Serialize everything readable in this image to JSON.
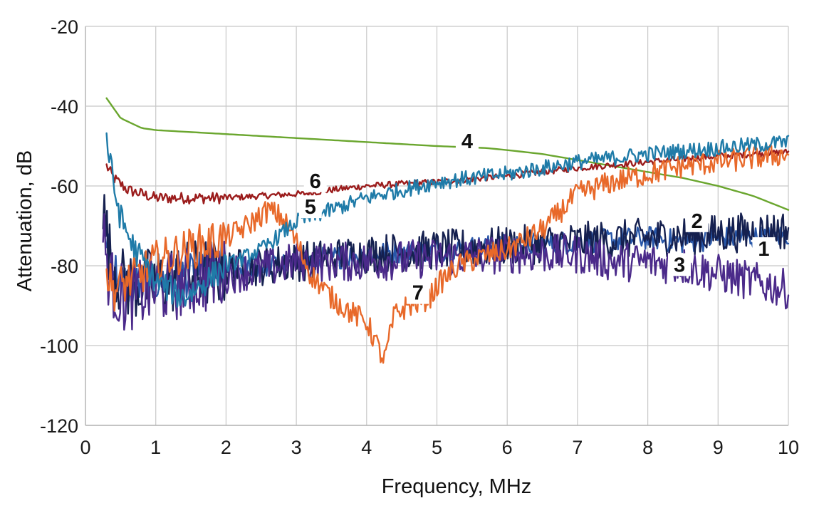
{
  "chart_data": {
    "type": "line",
    "title": "",
    "xlabel": "Frequency, MHz",
    "ylabel": "Attenuation, dB",
    "xlim": [
      0,
      10
    ],
    "ylim": [
      -120,
      -20
    ],
    "x_ticks": [
      0,
      1,
      2,
      3,
      4,
      5,
      6,
      7,
      8,
      9,
      10
    ],
    "y_ticks": [
      -20,
      -40,
      -60,
      -80,
      -100,
      -120
    ],
    "x_tick_labels": [
      "0",
      "1",
      "2",
      "3",
      "4",
      "5",
      "6",
      "7",
      "8",
      "9",
      "10"
    ],
    "y_tick_labels": [
      "-20",
      "-40",
      "-60",
      "-80",
      "-100",
      "-120"
    ],
    "grid": true,
    "legend": "none",
    "series": [
      {
        "name": "1",
        "color": "#2756a8",
        "noise": 3,
        "x": [
          0.3,
          0.4,
          0.5,
          0.7,
          1.0,
          1.3,
          1.6,
          2.0,
          2.5,
          3.0,
          3.5,
          4.0,
          5.0,
          6.0,
          7.0,
          8.0,
          8.5,
          9.0,
          9.5,
          9.8,
          10.0
        ],
        "y": [
          -72,
          -80,
          -84,
          -85,
          -84,
          -83,
          -82,
          -81,
          -80,
          -79,
          -78,
          -77,
          -76,
          -75,
          -74,
          -73,
          -74,
          -73,
          -73,
          -73,
          -72
        ]
      },
      {
        "name": "2",
        "color": "#15204f",
        "noise": 5,
        "x": [
          0.25,
          0.35,
          0.5,
          0.7,
          1.0,
          1.3,
          1.6,
          2.0,
          2.5,
          3.0,
          3.5,
          4.0,
          5.0,
          6.0,
          7.0,
          8.0,
          9.0,
          10.0
        ],
        "y": [
          -66,
          -78,
          -84,
          -85,
          -84,
          -83,
          -82,
          -81,
          -80,
          -79,
          -78,
          -77,
          -76,
          -75,
          -74,
          -73,
          -72,
          -71
        ]
      },
      {
        "name": "3",
        "color": "#4b2a8a",
        "noise": 5,
        "x": [
          0.25,
          0.35,
          0.5,
          0.7,
          1.0,
          1.5,
          2.0,
          2.5,
          3.0,
          3.5,
          4.0,
          5.0,
          6.0,
          7.0,
          7.5,
          8.0,
          8.5,
          9.0,
          9.5,
          10.0
        ],
        "y": [
          -72,
          -84,
          -88,
          -87,
          -86,
          -84,
          -82,
          -81,
          -79,
          -79,
          -79,
          -78,
          -77,
          -77,
          -79,
          -79,
          -80,
          -82,
          -84,
          -86
        ]
      },
      {
        "name": "4",
        "color": "#6aa62e",
        "noise": 0,
        "x": [
          0.3,
          0.5,
          0.8,
          1.0,
          2.0,
          3.0,
          4.0,
          5.0,
          5.7,
          6.0,
          6.5,
          7.0,
          7.5,
          8.0,
          8.5,
          9.0,
          9.5,
          10.0
        ],
        "y": [
          -38,
          -43,
          -45.5,
          -46,
          -47,
          -48,
          -49,
          -50,
          -50.5,
          -51,
          -52,
          -53.5,
          -55,
          -56.5,
          -58,
          -60,
          -62.5,
          -66
        ]
      },
      {
        "name": "5",
        "color": "#1f7ba8",
        "noise": 2,
        "x": [
          0.3,
          0.4,
          0.5,
          0.7,
          0.9,
          1.0,
          1.2,
          1.4,
          1.7,
          2.0,
          2.5,
          3.0,
          3.5,
          4.0,
          5.0,
          6.0,
          7.0,
          8.0,
          9.0,
          10.0
        ],
        "y": [
          -48,
          -60,
          -68,
          -76,
          -81,
          -84,
          -86,
          -88,
          -84,
          -80,
          -76,
          -69,
          -66,
          -63,
          -59,
          -57,
          -54,
          -52,
          -50.5,
          -49
        ]
      },
      {
        "name": "6",
        "color": "#9b1c1c",
        "noise": 0.8,
        "x": [
          0.3,
          0.4,
          0.6,
          0.8,
          1.0,
          1.5,
          2.0,
          2.5,
          3.0,
          3.1,
          3.5,
          4.0,
          5.0,
          6.0,
          7.0,
          8.0,
          9.0,
          10.0
        ],
        "y": [
          -55,
          -58,
          -61,
          -62,
          -63,
          -63,
          -63,
          -62.5,
          -62,
          -62,
          -61,
          -60,
          -59,
          -57.5,
          -55.5,
          -54,
          -52.5,
          -51.5
        ]
      },
      {
        "name": "7",
        "color": "#e8692a",
        "noise": 3,
        "x": [
          0.3,
          0.4,
          0.6,
          0.8,
          1.0,
          1.3,
          1.6,
          2.0,
          2.3,
          2.6,
          2.8,
          3.0,
          3.2,
          3.5,
          3.8,
          4.0,
          4.25,
          4.4,
          4.6,
          4.9,
          5.0,
          5.3,
          5.6,
          6.0,
          6.5,
          7.0,
          7.5,
          8.0,
          8.5,
          9.0,
          9.5,
          10.0
        ],
        "y": [
          -82,
          -86,
          -84,
          -82,
          -79,
          -77,
          -75,
          -73,
          -70,
          -66,
          -68,
          -74,
          -82,
          -88,
          -92,
          -94,
          -104,
          -92,
          -90,
          -88,
          -85,
          -80,
          -78,
          -76,
          -71,
          -62,
          -59,
          -57,
          -55,
          -54,
          -53,
          -52
        ]
      }
    ],
    "annotations": [
      {
        "text": "1",
        "x": 9.65,
        "y": -77.5
      },
      {
        "text": "2",
        "x": 8.7,
        "y": -70.5
      },
      {
        "text": "3",
        "x": 8.45,
        "y": -81.5
      },
      {
        "text": "4",
        "x": 5.43,
        "y": -50.5
      },
      {
        "text": "5",
        "x": 3.2,
        "y": -67
      },
      {
        "text": "6",
        "x": 3.27,
        "y": -60.5
      },
      {
        "text": "7",
        "x": 4.73,
        "y": -88.5
      }
    ]
  }
}
